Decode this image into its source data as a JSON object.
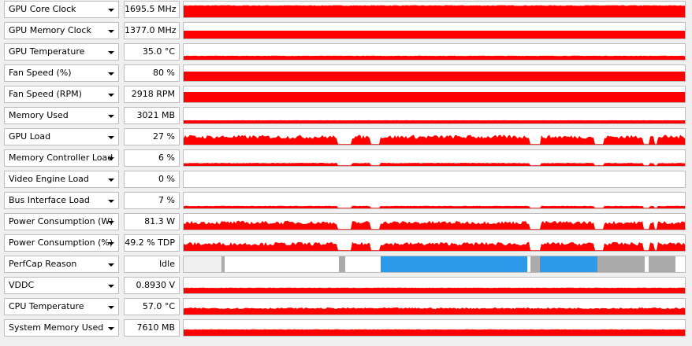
{
  "sensors": [
    {
      "name": "GPU Core Clock",
      "value": "1695.5 MHz"
    },
    {
      "name": "GPU Memory Clock",
      "value": "1377.0 MHz"
    },
    {
      "name": "GPU Temperature",
      "value": "35.0 °C"
    },
    {
      "name": "Fan Speed (%)",
      "value": "80 %"
    },
    {
      "name": "Fan Speed (RPM)",
      "value": "2918 RPM"
    },
    {
      "name": "Memory Used",
      "value": "3021 MB"
    },
    {
      "name": "GPU Load",
      "value": "27 %"
    },
    {
      "name": "Memory Controller Load",
      "value": "6 %"
    },
    {
      "name": "Video Engine Load",
      "value": "0 %"
    },
    {
      "name": "Bus Interface Load",
      "value": "7 %"
    },
    {
      "name": "Power Consumption (W)",
      "value": "81.3 W"
    },
    {
      "name": "Power Consumption (%)",
      "value": "49.2 % TDP"
    },
    {
      "name": "PerfCap Reason",
      "value": "Idle"
    },
    {
      "name": "VDDC",
      "value": "0.8930 V"
    },
    {
      "name": "CPU Temperature",
      "value": "57.0 °C"
    },
    {
      "name": "System Memory Used",
      "value": "7610 MB"
    }
  ]
}
